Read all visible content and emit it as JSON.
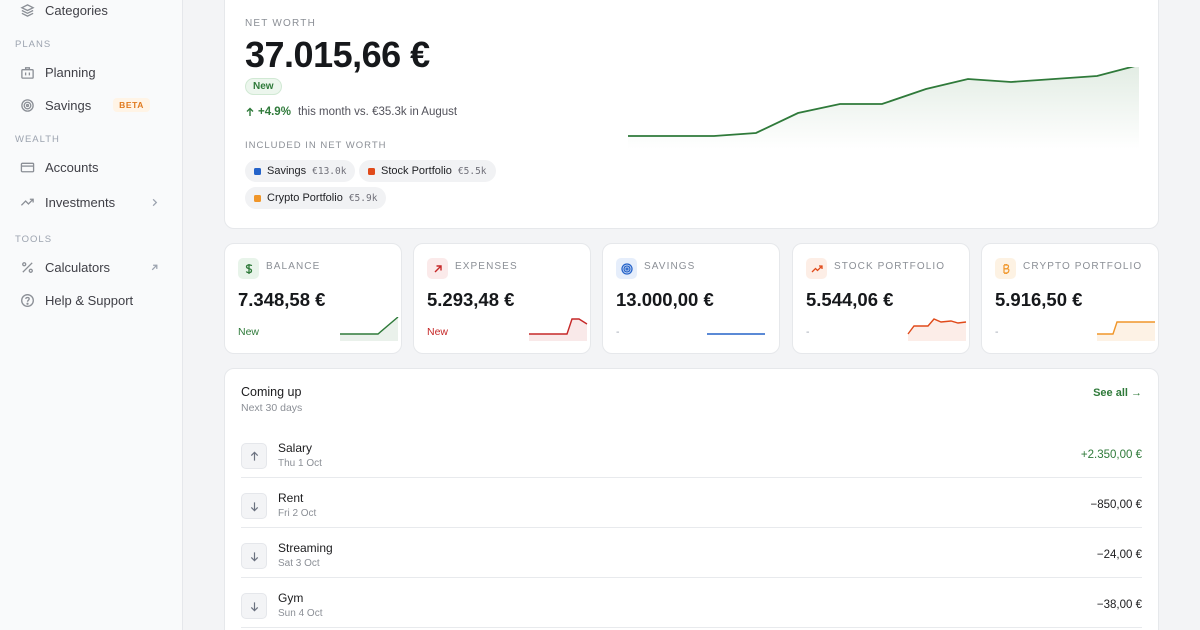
{
  "sidebar": {
    "categories_label": "Categories",
    "plans_section": "PLANS",
    "planning_label": "Planning",
    "savings_label": "Savings",
    "savings_badge": "BETA",
    "wealth_section": "WEALTH",
    "accounts_label": "Accounts",
    "investments_label": "Investments",
    "tools_section": "TOOLS",
    "calculators_label": "Calculators",
    "help_label": "Help & Support"
  },
  "net_worth": {
    "label": "NET WORTH",
    "value": "37.015,66 €",
    "badge": "New",
    "change_pct": "+4.9%",
    "change_text": "this month vs. €35.3k in August",
    "included_label": "INCLUDED IN NET WORTH",
    "chips": [
      {
        "name": "Savings",
        "amount": "€13.0k",
        "color": "#2563c9"
      },
      {
        "name": "Stock Portfolio",
        "amount": "€5.5k",
        "color": "#e04a1a"
      },
      {
        "name": "Crypto Portfolio",
        "amount": "€5.9k",
        "color": "#f0962a"
      }
    ]
  },
  "stats": [
    {
      "label": "BALANCE",
      "value": "7.348,58 €",
      "note": "New",
      "color": "#2f7a3a",
      "icon": "dollar-icon"
    },
    {
      "label": "EXPENSES",
      "value": "5.293,48 €",
      "note": "New",
      "color": "#c62828",
      "icon": "arrow-up-right-icon"
    },
    {
      "label": "SAVINGS",
      "value": "13.000,00 €",
      "note": "-",
      "color": "#2563c9",
      "icon": "target-icon"
    },
    {
      "label": "STOCK PORTFOLIO",
      "value": "5.544,06 €",
      "note": "-",
      "color": "#e04a1a",
      "icon": "trending-up-icon"
    },
    {
      "label": "CRYPTO PORTFOLIO",
      "value": "5.916,50 €",
      "note": "-",
      "color": "#f0962a",
      "icon": "bitcoin-icon"
    }
  ],
  "coming_up": {
    "title": "Coming up",
    "subtitle": "Next 30 days",
    "see_all": "See all →",
    "items": [
      {
        "name": "Salary",
        "date": "Thu 1 Oct",
        "amount": "+2.350,00 €",
        "direction": "in"
      },
      {
        "name": "Rent",
        "date": "Fri 2 Oct",
        "amount": "−850,00 €",
        "direction": "out"
      },
      {
        "name": "Streaming",
        "date": "Sat 3 Oct",
        "amount": "−24,00 €",
        "direction": "out"
      },
      {
        "name": "Gym",
        "date": "Sun 4 Oct",
        "amount": "−38,00 €",
        "direction": "out"
      }
    ]
  }
}
